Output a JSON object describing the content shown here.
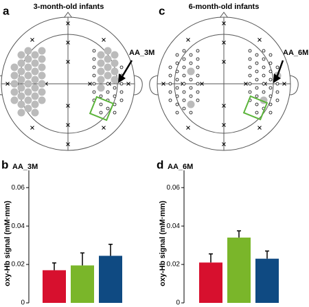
{
  "diagrams": [
    {
      "letter": "a",
      "title": "3-month-old infants",
      "label": "AA_3M"
    },
    {
      "letter": "c",
      "title": "6-month-old infants",
      "label": "AA_6M"
    }
  ],
  "chart_data": [
    {
      "type": "bar",
      "letter": "b",
      "title": "AA_3M",
      "y_label": "oxy-Hb signal (mM·mm)",
      "values": [
        0.017,
        0.0195,
        0.0245
      ],
      "errors": [
        0.0038,
        0.0065,
        0.006
      ],
      "colors": [
        "#d7102e",
        "#7ab62a",
        "#0f4a82"
      ],
      "ylim": [
        0,
        0.069
      ],
      "yticks": [
        0,
        0.02,
        0.04,
        0.06
      ]
    },
    {
      "type": "bar",
      "letter": "d",
      "title": "AA_6M",
      "y_label": "oxy-Hb signal (mM·mm)",
      "values": [
        0.021,
        0.034,
        0.023
      ],
      "errors": [
        0.0045,
        0.0035,
        0.004
      ],
      "colors": [
        "#d7102e",
        "#7ab62a",
        "#0f4a82"
      ],
      "ylim": [
        0,
        0.069
      ],
      "yticks": [
        0,
        0.02,
        0.04,
        0.06
      ]
    }
  ]
}
